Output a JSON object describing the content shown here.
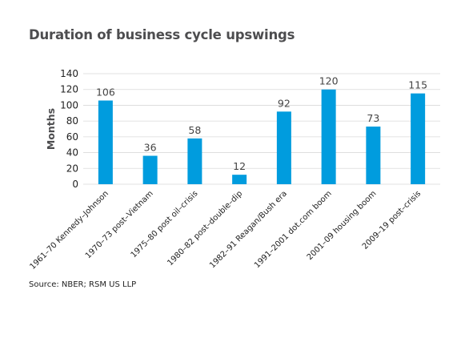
{
  "title": "Duration of business cycle upswings",
  "source": "Source: NBER; RSM US LLP",
  "colors": {
    "bar": "#009cde",
    "grid": "#d9d9d9",
    "title": "#4d4d4f"
  },
  "chart_data": {
    "type": "bar",
    "title": "Duration of business cycle upswings",
    "xlabel": "",
    "ylabel": "Months",
    "ylim": [
      0,
      140
    ],
    "yticks": [
      0,
      20,
      40,
      60,
      80,
      100,
      120,
      140
    ],
    "grid": true,
    "legend": "none",
    "categories": [
      "1961–70 Kennedy–Johnson",
      "1970–73 post–Vietnam",
      "1975–80 post oil–crisis",
      "1980–82 post–double–dip",
      "1982–91 Reagan/Bush era",
      "1991–2001 dot.com boom",
      "2001–09 housing boom",
      "2009–19 post–crisis"
    ],
    "values": [
      106,
      36,
      58,
      12,
      92,
      120,
      73,
      115
    ]
  }
}
